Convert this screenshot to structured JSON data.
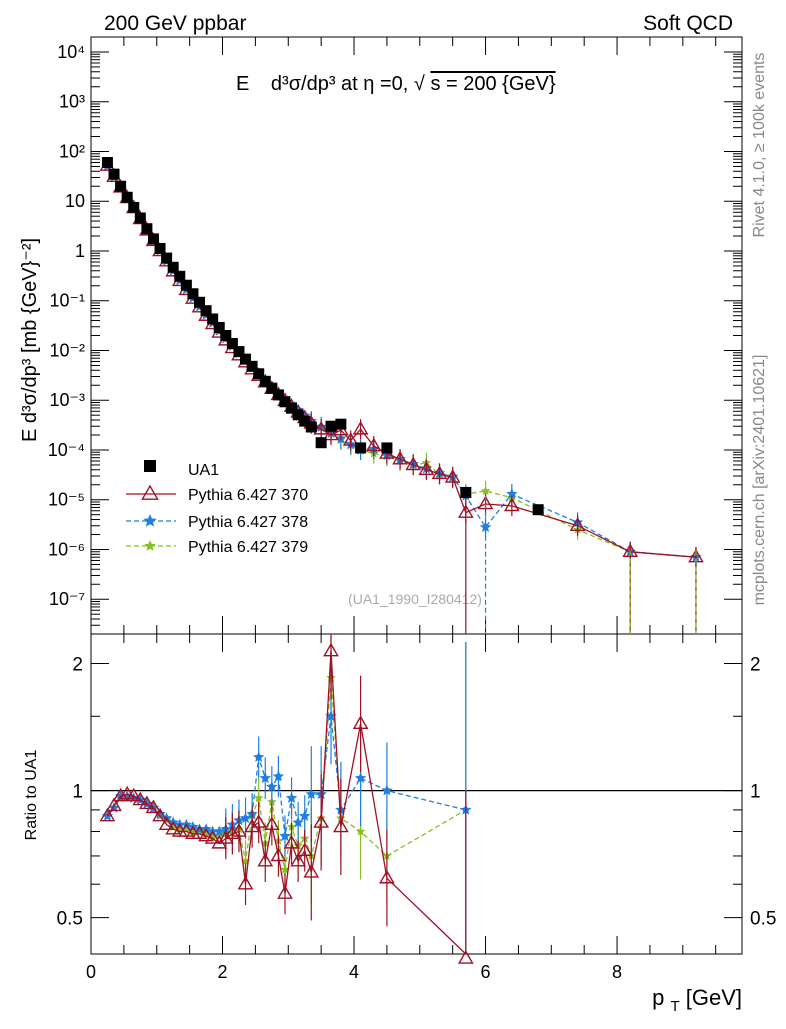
{
  "header": {
    "left": "200 GeV ppbar",
    "right": "Soft QCD"
  },
  "side_labels": {
    "rivet": "Rivet 4.1.0, ≥ 100k events",
    "mcplots": "mcplots.cern.ch [arXiv:2401.10621]"
  },
  "colors": {
    "ua1": "#000000",
    "py370": "#a01025",
    "py378": "#1f7fe0",
    "py379": "#88c020"
  },
  "chart_data": [
    {
      "type": "scatter",
      "panel": "main",
      "title": "E  d³σ/dp³ at η =0, √s = 200 {GeV}",
      "title_parts": {
        "e": "E",
        "expr": "d³σ/dp³ at η =0, ",
        "root": "√",
        "rest": "s = 200 {GeV}"
      },
      "ylabel": "E d³σ/dp³ [mb {GeV}⁻²]",
      "yscale": "log",
      "ylim": [
        2e-08,
        20000.0
      ],
      "xlim": [
        0,
        9.9
      ],
      "yticks": [
        "10⁻⁷",
        "10⁻⁶",
        "10⁻⁵",
        "10⁻⁴",
        "10⁻³",
        "10⁻²",
        "10⁻¹",
        "1",
        "10",
        "10²",
        "10³",
        "10⁴"
      ],
      "watermark": "(UA1_1990_I280412)",
      "legend_position": "bottom-left",
      "legend": [
        "UA1",
        "Pythia 6.427 370",
        "Pythia 6.427 378",
        "Pythia 6.427 379"
      ],
      "x": [
        0.25,
        0.35,
        0.45,
        0.55,
        0.65,
        0.75,
        0.85,
        0.95,
        1.05,
        1.15,
        1.25,
        1.35,
        1.45,
        1.55,
        1.65,
        1.75,
        1.85,
        1.95,
        2.05,
        2.15,
        2.25,
        2.35,
        2.45,
        2.55,
        2.65,
        2.75,
        2.85,
        2.95,
        3.05,
        3.15,
        3.25,
        3.35,
        3.5,
        3.65,
        3.8,
        4.1,
        4.5,
        5.7,
        6.8
      ],
      "series": [
        {
          "name": "UA1",
          "values": [
            60,
            35,
            20,
            12,
            7.5,
            4.6,
            2.8,
            1.75,
            1.12,
            0.72,
            0.47,
            0.31,
            0.205,
            0.138,
            0.093,
            0.063,
            0.043,
            0.029,
            0.02,
            0.0138,
            0.0095,
            0.0067,
            0.0048,
            0.0034,
            0.0024,
            0.00175,
            0.00128,
            0.00093,
            0.00069,
            0.00051,
            0.00038,
            0.00029,
            0.00014,
            0.0003,
            0.00033,
            0.00011,
            0.00011,
            1.4e-05,
            6.3e-06
          ]
        },
        {
          "name": "Pythia 6.427 370",
          "points": [
            [
              0.25,
              52
            ],
            [
              0.35,
              31
            ],
            [
              0.45,
              19
            ],
            [
              0.55,
              11.6
            ],
            [
              0.65,
              7.3
            ],
            [
              0.75,
              4.4
            ],
            [
              0.85,
              2.6
            ],
            [
              0.95,
              1.6
            ],
            [
              1.05,
              1.0
            ],
            [
              1.15,
              0.62
            ],
            [
              1.25,
              0.39
            ],
            [
              1.35,
              0.25
            ],
            [
              1.45,
              0.165
            ],
            [
              1.55,
              0.11
            ],
            [
              1.65,
              0.074
            ],
            [
              1.75,
              0.05
            ],
            [
              1.85,
              0.034
            ],
            [
              1.95,
              0.023
            ],
            [
              2.05,
              0.016
            ],
            [
              2.15,
              0.0112
            ],
            [
              2.25,
              0.008
            ],
            [
              2.35,
              0.0058
            ],
            [
              2.45,
              0.0042
            ],
            [
              2.55,
              0.0031
            ],
            [
              2.65,
              0.0023
            ],
            [
              2.75,
              0.0017
            ],
            [
              2.85,
              0.00128
            ],
            [
              2.95,
              0.00097
            ],
            [
              3.05,
              0.00074
            ],
            [
              3.15,
              0.00057
            ],
            [
              3.25,
              0.00044
            ],
            [
              3.35,
              0.00034
            ],
            [
              3.5,
              0.00026
            ],
            [
              3.65,
              0.0002
            ],
            [
              3.8,
              0.00025
            ],
            [
              3.95,
              0.000155
            ],
            [
              4.1,
              0.00026
            ],
            [
              4.3,
              0.00012
            ],
            [
              4.5,
              8.5e-05
            ],
            [
              4.7,
              6.5e-05
            ],
            [
              4.9,
              5e-05
            ],
            [
              5.1,
              4e-05
            ],
            [
              5.3,
              3.3e-05
            ],
            [
              5.5,
              2.8e-05
            ],
            [
              5.7,
              5.5e-06
            ],
            [
              6.0,
              8.2e-06
            ],
            [
              6.4,
              7.5e-06
            ],
            [
              7.4,
              3e-06
            ],
            [
              8.2,
              9e-07
            ],
            [
              9.2,
              7e-07
            ]
          ]
        },
        {
          "name": "Pythia 6.427 378",
          "points": [
            [
              0.25,
              51
            ],
            [
              0.35,
              30.5
            ],
            [
              0.45,
              18.8
            ],
            [
              0.55,
              11.5
            ],
            [
              0.65,
              7.3
            ],
            [
              0.75,
              4.4
            ],
            [
              0.85,
              2.62
            ],
            [
              0.95,
              1.62
            ],
            [
              1.05,
              1.02
            ],
            [
              1.15,
              0.63
            ],
            [
              1.25,
              0.4
            ],
            [
              1.35,
              0.256
            ],
            [
              1.45,
              0.168
            ],
            [
              1.55,
              0.113
            ],
            [
              1.65,
              0.076
            ],
            [
              1.75,
              0.052
            ],
            [
              1.85,
              0.036
            ],
            [
              1.95,
              0.025
            ],
            [
              2.05,
              0.0175
            ],
            [
              2.15,
              0.0123
            ],
            [
              2.25,
              0.0088
            ],
            [
              2.35,
              0.0064
            ],
            [
              2.45,
              0.0047
            ],
            [
              2.55,
              0.0035
            ],
            [
              2.65,
              0.0026
            ],
            [
              2.75,
              0.0019
            ],
            [
              2.85,
              0.00145
            ],
            [
              2.95,
              0.0011
            ],
            [
              3.05,
              0.00084
            ],
            [
              3.15,
              0.00064
            ],
            [
              3.25,
              0.00049
            ],
            [
              3.35,
              0.00038
            ],
            [
              3.5,
              0.00029
            ],
            [
              3.65,
              0.00022
            ],
            [
              3.8,
              0.00017
            ],
            [
              3.95,
              0.00013
            ],
            [
              4.1,
              0.0001
            ],
            [
              4.3,
              0.000105
            ],
            [
              4.5,
              8e-05
            ],
            [
              4.7,
              6.5e-05
            ],
            [
              4.9,
              5.2e-05
            ],
            [
              5.1,
              4.2e-05
            ],
            [
              5.3,
              3.4e-05
            ],
            [
              5.5,
              2.9e-05
            ],
            [
              5.7,
              1.2e-05
            ],
            [
              6.0,
              2.8e-06
            ],
            [
              6.4,
              1.3e-05
            ],
            [
              7.4,
              3.5e-06
            ],
            [
              8.2,
              9e-07
            ],
            [
              9.2,
              7e-07
            ]
          ]
        },
        {
          "name": "Pythia 6.427 379",
          "points": [
            [
              0.25,
              51.5
            ],
            [
              0.35,
              30.8
            ],
            [
              0.45,
              18.9
            ],
            [
              0.55,
              11.5
            ],
            [
              0.65,
              7.3
            ],
            [
              0.75,
              4.4
            ],
            [
              0.85,
              2.61
            ],
            [
              0.95,
              1.61
            ],
            [
              1.05,
              1.01
            ],
            [
              1.15,
              0.625
            ],
            [
              1.25,
              0.395
            ],
            [
              1.35,
              0.253
            ],
            [
              1.45,
              0.166
            ],
            [
              1.55,
              0.112
            ],
            [
              1.65,
              0.075
            ],
            [
              1.75,
              0.051
            ],
            [
              1.85,
              0.035
            ],
            [
              1.95,
              0.024
            ],
            [
              2.05,
              0.017
            ],
            [
              2.15,
              0.012
            ],
            [
              2.25,
              0.0086
            ],
            [
              2.35,
              0.0062
            ],
            [
              2.45,
              0.0045
            ],
            [
              2.55,
              0.0034
            ],
            [
              2.65,
              0.0025
            ],
            [
              2.75,
              0.0018
            ],
            [
              2.85,
              0.0014
            ],
            [
              2.95,
              0.00105
            ],
            [
              3.05,
              0.0008
            ],
            [
              3.15,
              0.0006
            ],
            [
              3.25,
              0.00046
            ],
            [
              3.35,
              0.00036
            ],
            [
              3.5,
              0.00028
            ],
            [
              3.65,
              0.00021
            ],
            [
              3.8,
              0.00016
            ],
            [
              3.95,
              0.000125
            ],
            [
              4.1,
              0.0001
            ],
            [
              4.3,
              8.5e-05
            ],
            [
              4.5,
              7.5e-05
            ],
            [
              4.7,
              6e-05
            ],
            [
              4.9,
              5e-05
            ],
            [
              5.1,
              5.5e-05
            ],
            [
              5.3,
              3.2e-05
            ],
            [
              5.5,
              2.7e-05
            ],
            [
              5.7,
              1.3e-05
            ],
            [
              6.0,
              1.5e-05
            ],
            [
              6.4,
              1.1e-05
            ],
            [
              7.4,
              2.5e-06
            ],
            [
              8.2,
              9e-07
            ],
            [
              9.2,
              7e-07
            ]
          ]
        }
      ]
    },
    {
      "type": "line",
      "panel": "ratio",
      "ylabel": "Ratio to UA1",
      "yscale": "log",
      "ylim": [
        0.41,
        2.35
      ],
      "xlim": [
        0,
        9.9
      ],
      "xlabel": "p_T [GeV]",
      "xlabel_parts": {
        "p": "p",
        "sub": "T",
        "unit": " [GeV]"
      },
      "xticks": [
        "0",
        "2",
        "4",
        "6",
        "8"
      ],
      "yticks": [
        "0.5",
        "1",
        "2"
      ],
      "reference_line": 1,
      "x": [
        0.25,
        0.35,
        0.45,
        0.55,
        0.65,
        0.75,
        0.85,
        0.95,
        1.05,
        1.15,
        1.25,
        1.35,
        1.45,
        1.55,
        1.65,
        1.75,
        1.85,
        1.95,
        2.05,
        2.15,
        2.25,
        2.35,
        2.45,
        2.55,
        2.65,
        2.75,
        2.85,
        2.95,
        3.05,
        3.15,
        3.25,
        3.35,
        3.5,
        3.65,
        3.8,
        4.1,
        4.5,
        5.7
      ],
      "series": [
        {
          "name": "Pythia 6.427 370",
          "values": [
            0.87,
            0.92,
            0.97,
            0.98,
            0.97,
            0.95,
            0.93,
            0.91,
            0.87,
            0.83,
            0.81,
            0.8,
            0.8,
            0.79,
            0.79,
            0.78,
            0.77,
            0.75,
            0.77,
            0.79,
            0.8,
            0.6,
            0.82,
            0.84,
            0.68,
            0.83,
            0.7,
            0.57,
            0.75,
            0.68,
            0.72,
            0.64,
            0.84,
            2.14,
            0.82,
            1.44,
            0.62,
            0.4
          ]
        },
        {
          "name": "Pythia 6.427 378",
          "values": [
            0.87,
            0.91,
            0.97,
            0.97,
            0.96,
            0.95,
            0.93,
            0.91,
            0.88,
            0.86,
            0.84,
            0.83,
            0.83,
            0.82,
            0.81,
            0.81,
            0.8,
            0.8,
            0.81,
            0.83,
            0.85,
            0.86,
            0.88,
            1.2,
            1.07,
            1.02,
            1.08,
            0.78,
            0.96,
            0.84,
            0.87,
            0.98,
            0.98,
            1.5,
            0.9,
            1.07,
            1.0,
            0.9
          ]
        },
        {
          "name": "Pythia 6.427 379",
          "values": [
            0.87,
            0.91,
            0.96,
            0.97,
            0.96,
            0.95,
            0.93,
            0.9,
            0.87,
            0.85,
            0.82,
            0.81,
            0.81,
            0.8,
            0.8,
            0.79,
            0.78,
            0.78,
            0.79,
            0.8,
            0.81,
            0.68,
            0.87,
            0.96,
            0.75,
            0.94,
            0.76,
            0.65,
            0.82,
            0.74,
            0.77,
            0.7,
            0.86,
            1.85,
            0.86,
            0.8,
            0.7,
            0.9
          ]
        }
      ]
    }
  ]
}
